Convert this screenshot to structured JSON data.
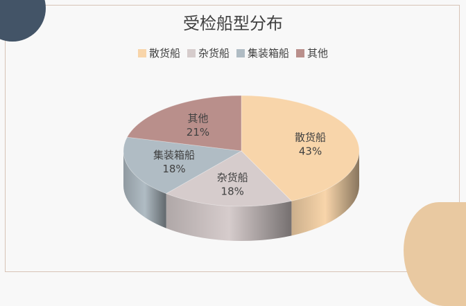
{
  "chart_data": {
    "type": "pie",
    "title": "受检船型分布",
    "legend_position": "top",
    "categories": [
      "散货船",
      "杂货船",
      "集装箱船",
      "其他"
    ],
    "values": [
      43,
      18,
      18,
      21
    ],
    "value_labels": [
      "43%",
      "18%",
      "18%",
      "21%"
    ],
    "colors": [
      "#f8d5aa",
      "#d6cccc",
      "#b0bcc4",
      "#b98f8b"
    ]
  }
}
